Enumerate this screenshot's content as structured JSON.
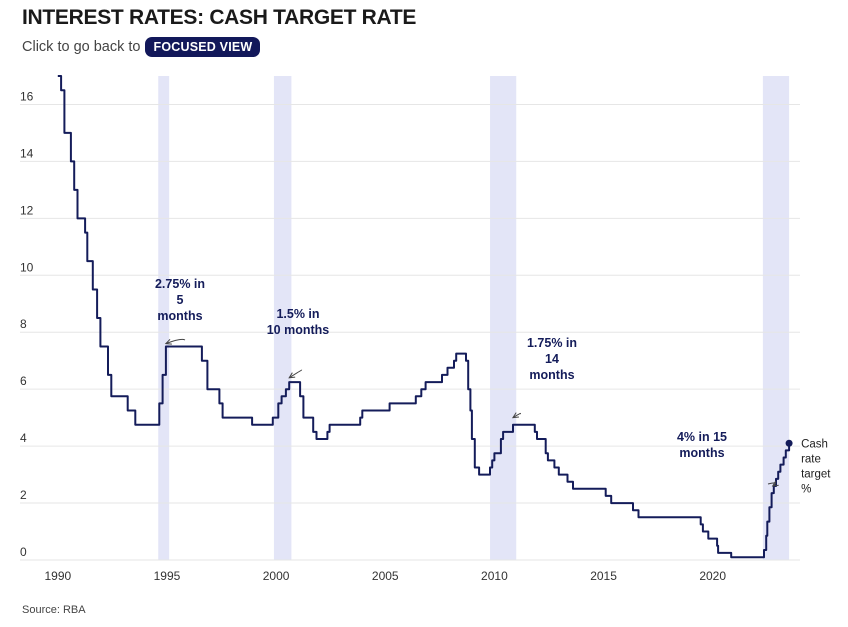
{
  "header": {
    "title": "INTEREST RATES: CASH TARGET RATE",
    "subtitle_text": "Click to go back to",
    "focus_button": "FOCUSED VIEW"
  },
  "footer": {
    "source": "Source: RBA"
  },
  "colors": {
    "line": "#141c5a",
    "band": "#e3e5f7",
    "grid": "#e6e6e6"
  },
  "chart_data": {
    "type": "line",
    "title": "INTEREST RATES: CASH TARGET RATE",
    "xlabel": "",
    "ylabel": "",
    "xlim": [
      1989.0,
      2024.0
    ],
    "ylim": [
      0,
      17
    ],
    "x_ticks": [
      1990,
      1995,
      2000,
      2005,
      2010,
      2015,
      2020
    ],
    "y_ticks": [
      0,
      2,
      4,
      6,
      8,
      10,
      12,
      14,
      16
    ],
    "grid": true,
    "shaded_periods": [
      [
        1994.6,
        1995.1
      ],
      [
        1999.9,
        2000.7
      ],
      [
        2009.8,
        2011.0
      ],
      [
        2022.3,
        2023.5
      ]
    ],
    "series": [
      {
        "name": "Cash rate target %",
        "step": true,
        "points": [
          [
            1990.0,
            17.0
          ],
          [
            1990.15,
            16.5
          ],
          [
            1990.3,
            15.0
          ],
          [
            1990.6,
            14.0
          ],
          [
            1990.75,
            13.0
          ],
          [
            1990.9,
            12.0
          ],
          [
            1991.25,
            11.5
          ],
          [
            1991.35,
            10.5
          ],
          [
            1991.6,
            9.5
          ],
          [
            1991.8,
            8.5
          ],
          [
            1991.95,
            7.5
          ],
          [
            1992.3,
            6.5
          ],
          [
            1992.45,
            5.75
          ],
          [
            1993.2,
            5.25
          ],
          [
            1993.55,
            4.75
          ],
          [
            1994.65,
            5.5
          ],
          [
            1994.8,
            6.5
          ],
          [
            1994.95,
            7.5
          ],
          [
            1996.6,
            7.0
          ],
          [
            1996.85,
            6.0
          ],
          [
            1997.4,
            5.5
          ],
          [
            1997.55,
            5.0
          ],
          [
            1998.9,
            4.75
          ],
          [
            1999.85,
            5.0
          ],
          [
            2000.1,
            5.5
          ],
          [
            2000.25,
            5.75
          ],
          [
            2000.45,
            6.0
          ],
          [
            2000.6,
            6.25
          ],
          [
            2001.1,
            5.75
          ],
          [
            2001.25,
            5.0
          ],
          [
            2001.7,
            4.5
          ],
          [
            2001.85,
            4.25
          ],
          [
            2002.35,
            4.5
          ],
          [
            2002.45,
            4.75
          ],
          [
            2003.85,
            5.0
          ],
          [
            2003.95,
            5.25
          ],
          [
            2005.2,
            5.5
          ],
          [
            2006.4,
            5.75
          ],
          [
            2006.65,
            6.0
          ],
          [
            2006.85,
            6.25
          ],
          [
            2007.6,
            6.5
          ],
          [
            2007.85,
            6.75
          ],
          [
            2008.15,
            7.0
          ],
          [
            2008.25,
            7.25
          ],
          [
            2008.7,
            7.0
          ],
          [
            2008.8,
            6.0
          ],
          [
            2008.9,
            5.25
          ],
          [
            2008.97,
            4.25
          ],
          [
            2009.1,
            3.25
          ],
          [
            2009.3,
            3.0
          ],
          [
            2009.8,
            3.25
          ],
          [
            2009.9,
            3.5
          ],
          [
            2010.0,
            3.75
          ],
          [
            2010.3,
            4.25
          ],
          [
            2010.4,
            4.5
          ],
          [
            2010.85,
            4.75
          ],
          [
            2011.85,
            4.5
          ],
          [
            2011.95,
            4.25
          ],
          [
            2012.35,
            3.75
          ],
          [
            2012.45,
            3.5
          ],
          [
            2012.75,
            3.25
          ],
          [
            2012.95,
            3.0
          ],
          [
            2013.35,
            2.75
          ],
          [
            2013.6,
            2.5
          ],
          [
            2015.1,
            2.25
          ],
          [
            2015.35,
            2.0
          ],
          [
            2016.35,
            1.75
          ],
          [
            2016.6,
            1.5
          ],
          [
            2019.45,
            1.25
          ],
          [
            2019.55,
            1.0
          ],
          [
            2019.8,
            0.75
          ],
          [
            2020.2,
            0.5
          ],
          [
            2020.25,
            0.25
          ],
          [
            2020.85,
            0.1
          ],
          [
            2022.35,
            0.35
          ],
          [
            2022.45,
            0.85
          ],
          [
            2022.5,
            1.35
          ],
          [
            2022.6,
            1.85
          ],
          [
            2022.7,
            2.35
          ],
          [
            2022.8,
            2.6
          ],
          [
            2022.9,
            2.85
          ],
          [
            2023.0,
            3.1
          ],
          [
            2023.1,
            3.35
          ],
          [
            2023.25,
            3.6
          ],
          [
            2023.35,
            3.85
          ],
          [
            2023.5,
            4.1
          ]
        ]
      }
    ],
    "annotations": [
      {
        "lines": [
          "2.75% in",
          "5",
          "months"
        ],
        "x": 1994.95,
        "y": 7.6
      },
      {
        "lines": [
          "1.5% in",
          "10 months"
        ],
        "x": 2000.6,
        "y": 6.4
      },
      {
        "lines": [
          "1.75% in",
          "14",
          "months"
        ],
        "x": 2010.85,
        "y": 5.0
      },
      {
        "lines": [
          "4% in 15",
          "months"
        ],
        "x": 2022.75,
        "y": 2.6
      }
    ],
    "end_label": [
      "Cash",
      "rate",
      "target",
      "%"
    ]
  }
}
